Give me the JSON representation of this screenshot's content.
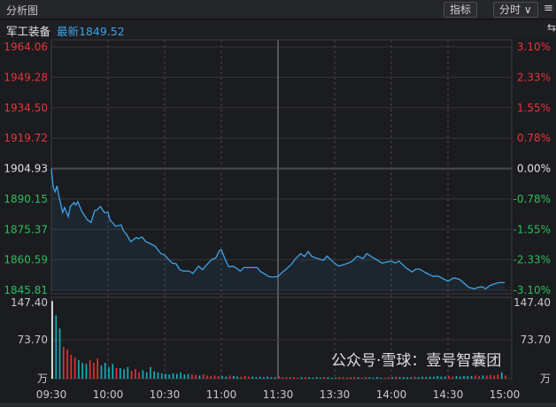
{
  "header": {
    "title": "分析图",
    "indicator_button": "指标",
    "period_button": "分时 ∨",
    "menu_icon": "menu-icon"
  },
  "quote": {
    "name": "军工装备",
    "latest": "最新1849.52"
  },
  "colors": {
    "up": "#e8333a",
    "down": "#2dbd5a",
    "flat": "#e0e0e0",
    "line": "#3ea2e6",
    "vol_up": "#e8333a",
    "vol_down": "#12b2c1"
  },
  "watermark": "公众号·雪球：壹号智囊团",
  "chart_data": {
    "type": "line",
    "price_axis": {
      "left": [
        "1964.06",
        "1949.28",
        "1934.50",
        "1919.72",
        "1904.93",
        "1890.15",
        "1875.37",
        "1860.59",
        "1845.81"
      ],
      "right": [
        "3.10%",
        "2.33%",
        "1.55%",
        "0.78%",
        "0.00%",
        "-0.78%",
        "-1.55%",
        "-2.33%",
        "-3.10%"
      ],
      "ylim": [
        1845.81,
        1964.06
      ],
      "prev_close": 1904.93
    },
    "volume_axis": {
      "labels": [
        "147.40",
        "73.70",
        "万"
      ],
      "ylim": [
        0,
        147.4
      ]
    },
    "x_ticks": [
      "09:30",
      "10:00",
      "10:30",
      "11:00",
      "11:30",
      "13:30",
      "14:00",
      "14:30",
      "15:00"
    ],
    "minutes_total": 240,
    "price": [
      [
        0,
        1904.93
      ],
      [
        1,
        1895.9
      ],
      [
        2,
        1893.7
      ],
      [
        3,
        1896.5
      ],
      [
        4,
        1891.6
      ],
      [
        6,
        1883.6
      ],
      [
        7,
        1886
      ],
      [
        9,
        1881.5
      ],
      [
        10,
        1886.5
      ],
      [
        12,
        1888.4
      ],
      [
        13,
        1887.2
      ],
      [
        14,
        1888.8
      ],
      [
        16,
        1884.4
      ],
      [
        19,
        1880.1
      ],
      [
        21,
        1878.7
      ],
      [
        23,
        1884.7
      ],
      [
        24,
        1884.7
      ],
      [
        26,
        1886.5
      ],
      [
        28,
        1883.6
      ],
      [
        30,
        1883.6
      ],
      [
        31,
        1880.1
      ],
      [
        34,
        1876.9
      ],
      [
        37,
        1877.5
      ],
      [
        38,
        1875
      ],
      [
        40,
        1872.7
      ],
      [
        42,
        1869.4
      ],
      [
        45,
        1871.5
      ],
      [
        46,
        1870.8
      ],
      [
        48,
        1871.7
      ],
      [
        50,
        1869.4
      ],
      [
        52,
        1868.6
      ],
      [
        55,
        1867.2
      ],
      [
        58,
        1863.6
      ],
      [
        60,
        1862.9
      ],
      [
        62,
        1860.8
      ],
      [
        64,
        1859
      ],
      [
        66,
        1858.7
      ],
      [
        68,
        1855.8
      ],
      [
        70,
        1855.1
      ],
      [
        73,
        1855.1
      ],
      [
        75,
        1854
      ],
      [
        77,
        1856.5
      ],
      [
        78,
        1857.5
      ],
      [
        80,
        1855.8
      ],
      [
        82,
        1857.9
      ],
      [
        85,
        1860.8
      ],
      [
        87,
        1861.4
      ],
      [
        89,
        1865.1
      ],
      [
        90,
        1865.5
      ],
      [
        92,
        1860.8
      ],
      [
        94,
        1857.2
      ],
      [
        96,
        1857.5
      ],
      [
        98,
        1856.5
      ],
      [
        100,
        1855.1
      ],
      [
        102,
        1856.8
      ],
      [
        105,
        1856.8
      ],
      [
        109,
        1856.8
      ],
      [
        111,
        1854.7
      ],
      [
        113,
        1853.7
      ],
      [
        115,
        1852.5
      ],
      [
        117,
        1852.2
      ],
      [
        120,
        1852.5
      ],
      [
        123,
        1855.1
      ],
      [
        124,
        1855.8
      ],
      [
        127,
        1858.3
      ],
      [
        129,
        1860.8
      ],
      [
        132,
        1863.6
      ],
      [
        134,
        1862.2
      ],
      [
        136,
        1864.6
      ],
      [
        138,
        1862.2
      ],
      [
        141,
        1861.2
      ],
      [
        144,
        1860.4
      ],
      [
        146,
        1862.4
      ],
      [
        149,
        1859.7
      ],
      [
        152,
        1857.5
      ],
      [
        155,
        1858.3
      ],
      [
        159,
        1859.7
      ],
      [
        162,
        1862.4
      ],
      [
        165,
        1861.2
      ],
      [
        167,
        1863.6
      ],
      [
        170,
        1861.8
      ],
      [
        172,
        1860.8
      ],
      [
        175,
        1859
      ],
      [
        180,
        1860
      ],
      [
        182,
        1859
      ],
      [
        184,
        1860
      ],
      [
        188,
        1856.5
      ],
      [
        191,
        1854.7
      ],
      [
        193,
        1856.1
      ],
      [
        195,
        1856.1
      ],
      [
        198,
        1854.4
      ],
      [
        202,
        1852.6
      ],
      [
        205,
        1852.6
      ],
      [
        210,
        1850.1
      ],
      [
        213,
        1851.8
      ],
      [
        216,
        1851.2
      ],
      [
        221,
        1847.2
      ],
      [
        224,
        1846.5
      ],
      [
        226,
        1847.2
      ],
      [
        228,
        1847.5
      ],
      [
        230,
        1846.5
      ],
      [
        232,
        1848
      ],
      [
        234,
        1848.7
      ],
      [
        237,
        1849.5
      ],
      [
        240,
        1849.52
      ]
    ],
    "volume_interval_minutes": 2,
    "volume": [
      147,
      120,
      95,
      60,
      55,
      45,
      40,
      35,
      30,
      28,
      35,
      30,
      38,
      25,
      30,
      22,
      28,
      20,
      20,
      18,
      22,
      15,
      18,
      12,
      16,
      12,
      22,
      14,
      12,
      10,
      9,
      8,
      10,
      9,
      12,
      8,
      9,
      8,
      7,
      6,
      8,
      6,
      5,
      6,
      5,
      5,
      4,
      6,
      5,
      4,
      4,
      5,
      4,
      4,
      3,
      4,
      3,
      4,
      3,
      3,
      5,
      3,
      3,
      3,
      3,
      2,
      3,
      3,
      3,
      2,
      3,
      2,
      3,
      3,
      2,
      2,
      3,
      3,
      2,
      3,
      3,
      3,
      2,
      3,
      3,
      2,
      3,
      2,
      2,
      3,
      3,
      4,
      3,
      3,
      3,
      3,
      4,
      3,
      4,
      3,
      4,
      4,
      5,
      4,
      4,
      5,
      4,
      5,
      4,
      5,
      5,
      5,
      6,
      5,
      6,
      6,
      7,
      6,
      8,
      12,
      6
    ]
  }
}
